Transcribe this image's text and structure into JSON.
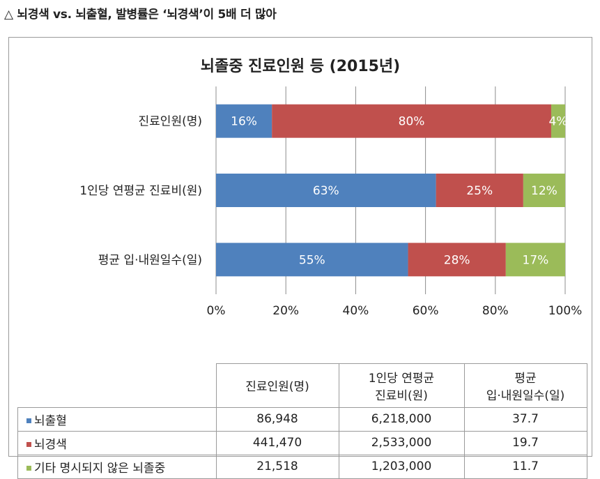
{
  "caption": "△ 뇌경색 vs. 뇌출혈, 발병률은 ‘뇌경색’이 5배 더 많아",
  "chart_data": {
    "type": "bar",
    "orientation": "horizontal",
    "stacked": true,
    "percent_stacked": true,
    "title": "뇌졸중 진료인원 등 (2015년)",
    "categories": [
      "진료인원(명)",
      "1인당 연평균 진료비(원)",
      "평균 입·내원일수(일)"
    ],
    "series": [
      {
        "name": "뇌출혈",
        "color": "#4f81bd",
        "values": [
          16,
          63,
          55
        ],
        "labels": [
          "16%",
          "63%",
          "55%"
        ]
      },
      {
        "name": "뇌경색",
        "color": "#c0504d",
        "values": [
          80,
          25,
          28
        ],
        "labels": [
          "80%",
          "25%",
          "28%"
        ]
      },
      {
        "name": "기타 명시되지 않은 뇌졸중",
        "color": "#9bbb59",
        "values": [
          4,
          12,
          17
        ],
        "labels": [
          "4%",
          "12%",
          "17%"
        ]
      }
    ],
    "xlim": [
      0,
      100
    ],
    "xticks": [
      "0%",
      "20%",
      "40%",
      "60%",
      "80%",
      "100%"
    ],
    "grid": true,
    "legend": "table-below"
  },
  "table": {
    "headers": [
      [
        "진료인원(명)"
      ],
      [
        "1인당 연평균",
        "진료비(원)"
      ],
      [
        "평균",
        "입·내원일수(일)"
      ]
    ],
    "rows": [
      {
        "name": "뇌출혈",
        "color": "#4f81bd",
        "cells": [
          "86,948",
          "6,218,000",
          "37.7"
        ]
      },
      {
        "name": "뇌경색",
        "color": "#c0504d",
        "cells": [
          "441,470",
          "2,533,000",
          "19.7"
        ]
      },
      {
        "name": "기타 명시되지 않은 뇌졸중",
        "color": "#9bbb59",
        "cells": [
          "21,518",
          "1,203,000",
          "11.7"
        ]
      }
    ]
  }
}
